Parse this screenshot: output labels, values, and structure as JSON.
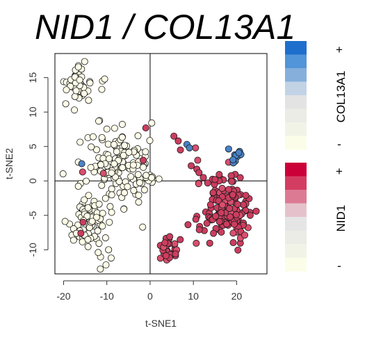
{
  "title": "NID1 / COL13A1",
  "chart_data": {
    "type": "scatter",
    "xlabel": "t-SNE1",
    "ylabel": "t-SNE2",
    "xlim": [
      -22,
      27
    ],
    "ylim": [
      -13.5,
      18.5
    ],
    "xticks": [
      -20,
      -10,
      0,
      10,
      20
    ],
    "yticks": [
      -10,
      -5,
      0,
      5,
      10,
      15
    ],
    "reference_lines": {
      "x": 0,
      "y": 0
    },
    "grid": false,
    "legend_placement": "right",
    "colors": {
      "neutral": "#fffde8",
      "nid1_high": "#cc3d5f",
      "col13a1_high": "#4a82c6",
      "point_outline": "#1a1a1a"
    },
    "legends": [
      {
        "label": "COL13A1",
        "high": "+",
        "low": "-",
        "colors": [
          "#1e6fcc",
          "#5295d8",
          "#86afdc",
          "#c3d3e6",
          "#e3e3e3",
          "#ebece6",
          "#f1f3e6",
          "#fbfde8"
        ]
      },
      {
        "label": "NID1",
        "high": "+",
        "low": "-",
        "colors": [
          "#cc0039",
          "#d43d62",
          "#dc7a94",
          "#e5c2cb",
          "#e5e5e5",
          "#ebece6",
          "#f1f3e6",
          "#fbfde8"
        ]
      }
    ],
    "clusters": [
      {
        "name": "upper-left",
        "n": 45,
        "center": [
          -16.5,
          14.2
        ],
        "spread": [
          2.0,
          1.5
        ],
        "seed": 11,
        "expression": "neutral"
      },
      {
        "name": "upper-left-stragglers",
        "points": [
          [
            -19.5,
            11.2
          ],
          [
            -17.5,
            10.3
          ],
          [
            -11.0,
            14.5
          ],
          [
            -10.5,
            14.8
          ]
        ],
        "expression": "neutral"
      },
      {
        "name": "central-band",
        "n": 150,
        "center": [
          -7.0,
          2.0
        ],
        "spread": [
          5.5,
          3.6
        ],
        "seed": 23,
        "expression": "neutral"
      },
      {
        "name": "lower-left",
        "n": 70,
        "center": [
          -14.0,
          -6.0
        ],
        "spread": [
          2.6,
          3.0
        ],
        "seed": 37,
        "expression": "neutral"
      },
      {
        "name": "lower-left-tail",
        "points": [
          [
            -11.5,
            -12.8
          ],
          [
            -10.2,
            -12.2
          ],
          [
            -9.0,
            -11.2
          ],
          [
            -12.0,
            -10.4
          ],
          [
            -9.6,
            -10.0
          ]
        ],
        "expression": "neutral"
      },
      {
        "name": "right-main",
        "n": 180,
        "center": [
          18.0,
          -4.0
        ],
        "spread": [
          3.5,
          3.0
        ],
        "seed": 41,
        "expression": "nid1"
      },
      {
        "name": "bottom-middle",
        "n": 32,
        "center": [
          4.5,
          -10.2
        ],
        "spread": [
          1.5,
          1.4
        ],
        "seed": 53,
        "expression": "nid1"
      },
      {
        "name": "bridge",
        "points": [
          [
            5.5,
            6.5
          ],
          [
            6.5,
            5.8
          ],
          [
            7.0,
            4.5
          ],
          [
            10.5,
            4.8
          ],
          [
            11.0,
            3.0
          ],
          [
            9.5,
            2.2
          ],
          [
            10.8,
            1.7
          ],
          [
            11.3,
            1.2
          ],
          [
            12.3,
            0.5
          ],
          [
            13.3,
            -0.3
          ],
          [
            15.0,
            0.2
          ]
        ],
        "expression": "nid1"
      },
      {
        "name": "col13a1-pair",
        "points": [
          [
            8.5,
            5.3
          ],
          [
            9.1,
            4.8
          ]
        ],
        "expression": "col13a1"
      },
      {
        "name": "col13a1-cluster",
        "n": 12,
        "center": [
          19.5,
          4.0
        ],
        "spread": [
          1.2,
          0.9
        ],
        "seed": 67,
        "expression": "col13a1"
      },
      {
        "name": "scattered-nid1",
        "points": [
          [
            -1.0,
            7.7
          ],
          [
            -1.6,
            3.0
          ],
          [
            -15.5,
            -6.0
          ],
          [
            -15.6,
            1.3
          ],
          [
            -10.8,
            1.1
          ],
          [
            -16.0,
            -7.6
          ]
        ],
        "expression": "nid1"
      },
      {
        "name": "scattered-col13a1",
        "points": [
          [
            -15.8,
            2.5
          ]
        ],
        "expression": "col13a1"
      }
    ]
  }
}
